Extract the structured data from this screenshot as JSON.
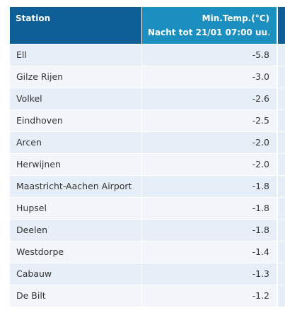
{
  "table": {
    "header": [
      "Station",
      "Min.Temp.(°C)",
      "Nacht tot 21/01 07:00 uu"
    ],
    "rows": [
      [
        "Ell",
        "-5.8"
      ],
      [
        "Gilze Rijen",
        "-3.0"
      ],
      [
        "Volkel",
        "-2.6"
      ],
      [
        "Eindhoven",
        "-2.5"
      ],
      [
        "Arcen",
        "-2.0"
      ],
      [
        "Herwijnen",
        "-2.0"
      ],
      [
        "Maastricht-Aachen Airport",
        "-1.8"
      ],
      [
        "Hupsel",
        "-1.8"
      ],
      [
        "Deelen",
        "-1.8"
      ],
      [
        "Westdorpe",
        "-1.4"
      ],
      [
        "Cabauw",
        "-1.3"
      ],
      [
        "De Bilt",
        "-1.2"
      ]
    ]
  }
}
